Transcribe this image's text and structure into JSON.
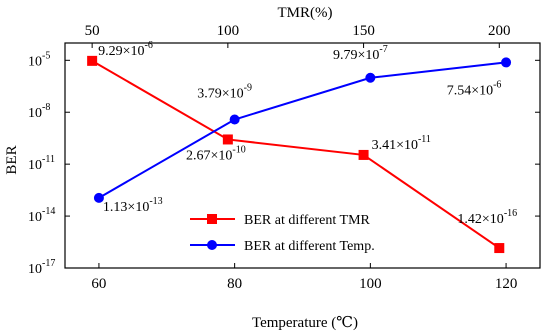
{
  "chart_data": {
    "type": "line",
    "title": "",
    "xlabel_bottom": "Temperature (℃)",
    "xlabel_top": "TMR(%)",
    "ylabel": "BER",
    "y_scale": "log",
    "ylim_exp": [
      -17,
      -4
    ],
    "bottom_axis": {
      "range": [
        55,
        125
      ],
      "ticks": [
        "60",
        "80",
        "100",
        "120"
      ]
    },
    "top_axis": {
      "range": [
        40,
        215
      ],
      "ticks": [
        "50",
        "100",
        "150",
        "200"
      ]
    },
    "y_ticks": [
      {
        "base": "10",
        "exp": "-5"
      },
      {
        "base": "10",
        "exp": "-8"
      },
      {
        "base": "10",
        "exp": "-11"
      },
      {
        "base": "10",
        "exp": "-14"
      },
      {
        "base": "10",
        "exp": "-17"
      }
    ],
    "series": [
      {
        "name": "BER at different TMR",
        "axis": "top",
        "color": "#ff0000",
        "marker": "square",
        "x": [
          50,
          100,
          150,
          200
        ],
        "y": [
          9.29e-06,
          2.67e-10,
          3.41e-11,
          1.42e-16
        ],
        "labels": [
          {
            "mant": "9.29",
            "exp": "-6"
          },
          {
            "mant": "2.67",
            "exp": "-10"
          },
          {
            "mant": "3.41",
            "exp": "-11"
          },
          {
            "mant": "1.42",
            "exp": "-16"
          }
        ]
      },
      {
        "name": "BER at different Temp.",
        "axis": "bottom",
        "color": "#0000ff",
        "marker": "circle",
        "x": [
          60,
          80,
          100,
          120
        ],
        "y": [
          1.13e-13,
          3.79e-09,
          9.79e-07,
          7.54e-06
        ],
        "labels": [
          {
            "mant": "1.13",
            "exp": "-13"
          },
          {
            "mant": "3.79",
            "exp": "-9"
          },
          {
            "mant": "9.79",
            "exp": "-7"
          },
          {
            "mant": "7.54",
            "exp": "-6"
          }
        ]
      }
    ],
    "legend": "center"
  }
}
